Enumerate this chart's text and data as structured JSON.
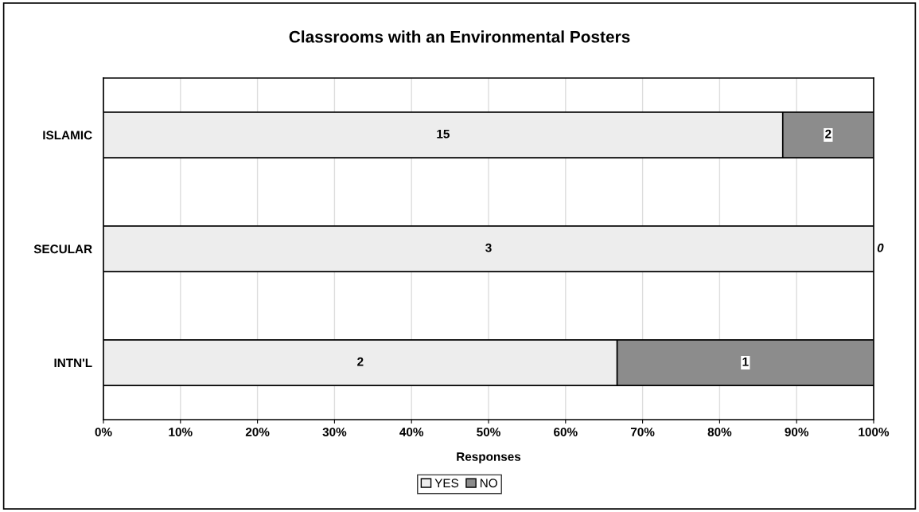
{
  "chart_data": {
    "type": "bar",
    "orientation": "horizontal",
    "stacked": true,
    "title": "Classrooms with an Environmental Posters",
    "xlabel": "Responses",
    "categories": [
      "ISLAMIC",
      "SECULAR",
      "INTN'L"
    ],
    "series": [
      {
        "name": "YES",
        "color": "#ededed",
        "values": [
          88.2,
          100,
          66.7
        ]
      },
      {
        "name": "NO",
        "color": "#8c8c8c",
        "values": [
          11.8,
          0,
          33.3
        ]
      }
    ],
    "annotations": [
      "15",
      "2",
      "3",
      "0",
      "2",
      "1"
    ],
    "xlim": [
      0,
      100
    ],
    "xticks": [
      {
        "value": 0,
        "label": "0%"
      },
      {
        "value": 10,
        "label": "10%"
      },
      {
        "value": 20,
        "label": "20%"
      },
      {
        "value": 30,
        "label": "30%"
      },
      {
        "value": 40,
        "label": "40%"
      },
      {
        "value": 50,
        "label": "50%"
      },
      {
        "value": 60,
        "label": "60%"
      },
      {
        "value": 70,
        "label": "70%"
      },
      {
        "value": 80,
        "label": "80%"
      },
      {
        "value": 90,
        "label": "90%"
      },
      {
        "value": 100,
        "label": "100%"
      }
    ],
    "grid": "x",
    "legend": "bottom"
  }
}
